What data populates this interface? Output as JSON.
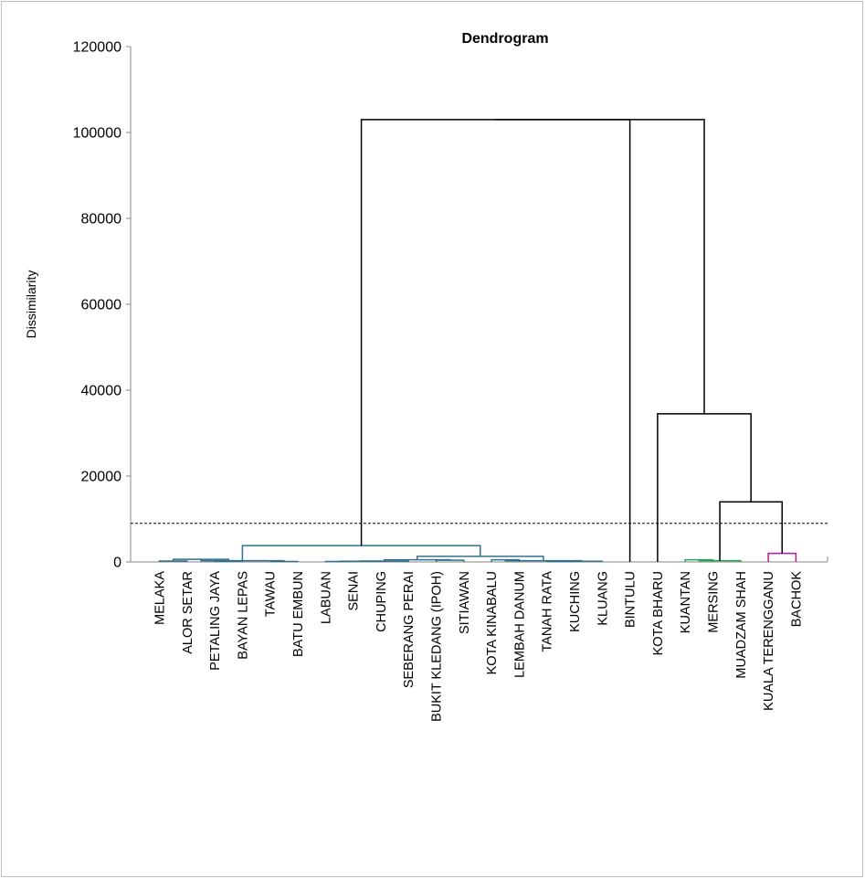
{
  "chart_data": {
    "type": "dendrogram",
    "title": "Dendrogram",
    "xlabel": "",
    "ylabel": "Dissimilarity",
    "ylim": [
      0,
      120000
    ],
    "yticks": [
      "0",
      "20000",
      "40000",
      "60000",
      "80000",
      "100000",
      "120000"
    ],
    "ytick_values": [
      0,
      20000,
      40000,
      60000,
      80000,
      100000,
      120000
    ],
    "grid": false,
    "legend": "none",
    "truncation_line": 9000,
    "colors": {
      "axis": "#868686",
      "cluster_blue": "#31708f",
      "cluster_green": "#29a35a",
      "cluster_magenta": "#b5179e",
      "root": "#000000",
      "truncation": "#000000"
    },
    "leaves": [
      "MELAKA",
      "ALOR SETAR",
      "PETALING JAYA",
      "BAYAN LEPAS",
      "TAWAU",
      "BATU EMBUN",
      "LABUAN",
      "SENAI",
      "CHUPING",
      "SEBERANG PERAI",
      "BUKIT KLEDANG (IPOH)",
      "SITIAWAN",
      "KOTA KINABALU",
      "LEMBAH DANUM",
      "TANAH RATA",
      "KUCHING",
      "KLUANG",
      "BINTULU",
      "KOTA BHARU",
      "KUANTAN",
      "MERSING",
      "MUADZAM SHAH",
      "KUALA TERENGGANU",
      "BACHOK"
    ],
    "merges": [
      {
        "id": "m1",
        "children": [
          "L0",
          "L1"
        ],
        "height": 200,
        "color": "cluster_blue"
      },
      {
        "id": "m2",
        "children": [
          "L2",
          "L3"
        ],
        "height": 150,
        "color": "cluster_blue"
      },
      {
        "id": "m3",
        "children": [
          "m1",
          "m2"
        ],
        "height": 600,
        "color": "cluster_blue"
      },
      {
        "id": "m4",
        "children": [
          "L4",
          "L5"
        ],
        "height": 100,
        "color": "cluster_blue"
      },
      {
        "id": "m5",
        "children": [
          "m3",
          "m4"
        ],
        "height": 300,
        "color": "cluster_blue"
      },
      {
        "id": "m6",
        "children": [
          "L6",
          "L7"
        ],
        "height": 100,
        "color": "cluster_blue"
      },
      {
        "id": "m7",
        "children": [
          "m6",
          "L8"
        ],
        "height": 150,
        "color": "cluster_blue"
      },
      {
        "id": "m8",
        "children": [
          "m7",
          "L9"
        ],
        "height": 200,
        "color": "cluster_blue"
      },
      {
        "id": "m9",
        "children": [
          "L10",
          "L11"
        ],
        "height": 400,
        "color": "cluster_blue"
      },
      {
        "id": "m10",
        "children": [
          "m8",
          "m9"
        ],
        "height": 500,
        "color": "cluster_blue"
      },
      {
        "id": "m11",
        "children": [
          "L12",
          "L13"
        ],
        "height": 500,
        "color": "cluster_blue"
      },
      {
        "id": "m12",
        "children": [
          "L14",
          "L15"
        ],
        "height": 100,
        "color": "cluster_blue"
      },
      {
        "id": "m13",
        "children": [
          "m12",
          "L16"
        ],
        "height": 150,
        "color": "cluster_blue"
      },
      {
        "id": "m14",
        "children": [
          "m11",
          "m13"
        ],
        "height": 300,
        "color": "cluster_blue"
      },
      {
        "id": "m15",
        "children": [
          "m10",
          "m14"
        ],
        "height": 1300,
        "color": "cluster_blue"
      },
      {
        "id": "m16",
        "children": [
          "m5",
          "m15"
        ],
        "height": 3800,
        "color": "cluster_blue"
      },
      {
        "id": "m17",
        "children": [
          "m16",
          "L17"
        ],
        "height": 103000,
        "color": "root"
      },
      {
        "id": "m18",
        "children": [
          "L19",
          "L20"
        ],
        "height": 500,
        "color": "cluster_green"
      },
      {
        "id": "m19",
        "children": [
          "m18",
          "L21"
        ],
        "height": 300,
        "color": "cluster_green"
      },
      {
        "id": "m20",
        "children": [
          "L22",
          "L23"
        ],
        "height": 2000,
        "color": "cluster_magenta"
      },
      {
        "id": "m21",
        "children": [
          "m19",
          "m20"
        ],
        "height": 14000,
        "color": "root"
      },
      {
        "id": "m22",
        "children": [
          "L18",
          "m21"
        ],
        "height": 34500,
        "color": "root"
      },
      {
        "id": "m23",
        "children": [
          "m17",
          "m22"
        ],
        "height": 103000,
        "color": "root"
      }
    ]
  }
}
